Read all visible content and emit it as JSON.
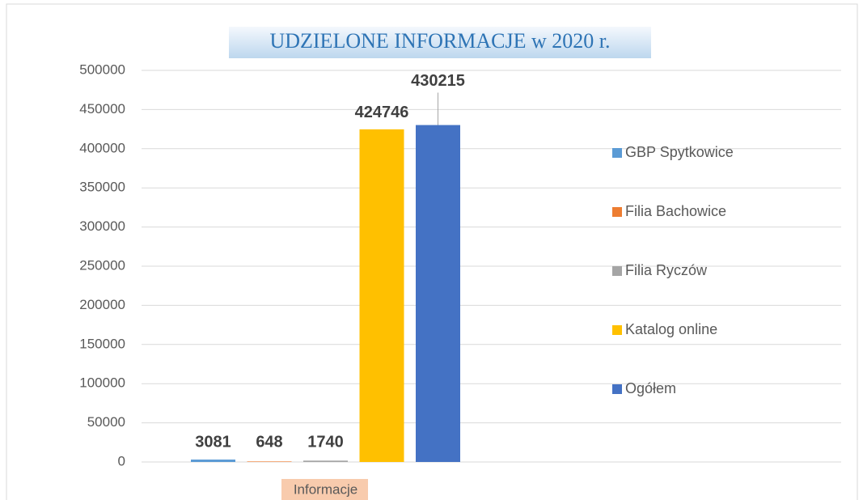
{
  "chart_data": {
    "type": "bar",
    "title": "UDZIELONE INFORMACJE w 2020 r.",
    "categories": [
      "Informacje"
    ],
    "series": [
      {
        "name": "GBP Spytkowice",
        "color": "#5b9bd5",
        "values": [
          3081
        ]
      },
      {
        "name": "Filia Bachowice",
        "color": "#ed7d31",
        "values": [
          648
        ]
      },
      {
        "name": "Filia Ryczów",
        "color": "#a5a5a5",
        "values": [
          1740
        ]
      },
      {
        "name": "Katalog online",
        "color": "#ffc000",
        "values": [
          424746
        ]
      },
      {
        "name": "Ogółem",
        "color": "#4472c4",
        "values": [
          430215
        ]
      }
    ],
    "ylim": [
      0,
      500000
    ],
    "yticks": [
      0,
      50000,
      100000,
      150000,
      200000,
      250000,
      300000,
      350000,
      400000,
      450000,
      500000
    ],
    "grid": true,
    "legend": "right"
  }
}
